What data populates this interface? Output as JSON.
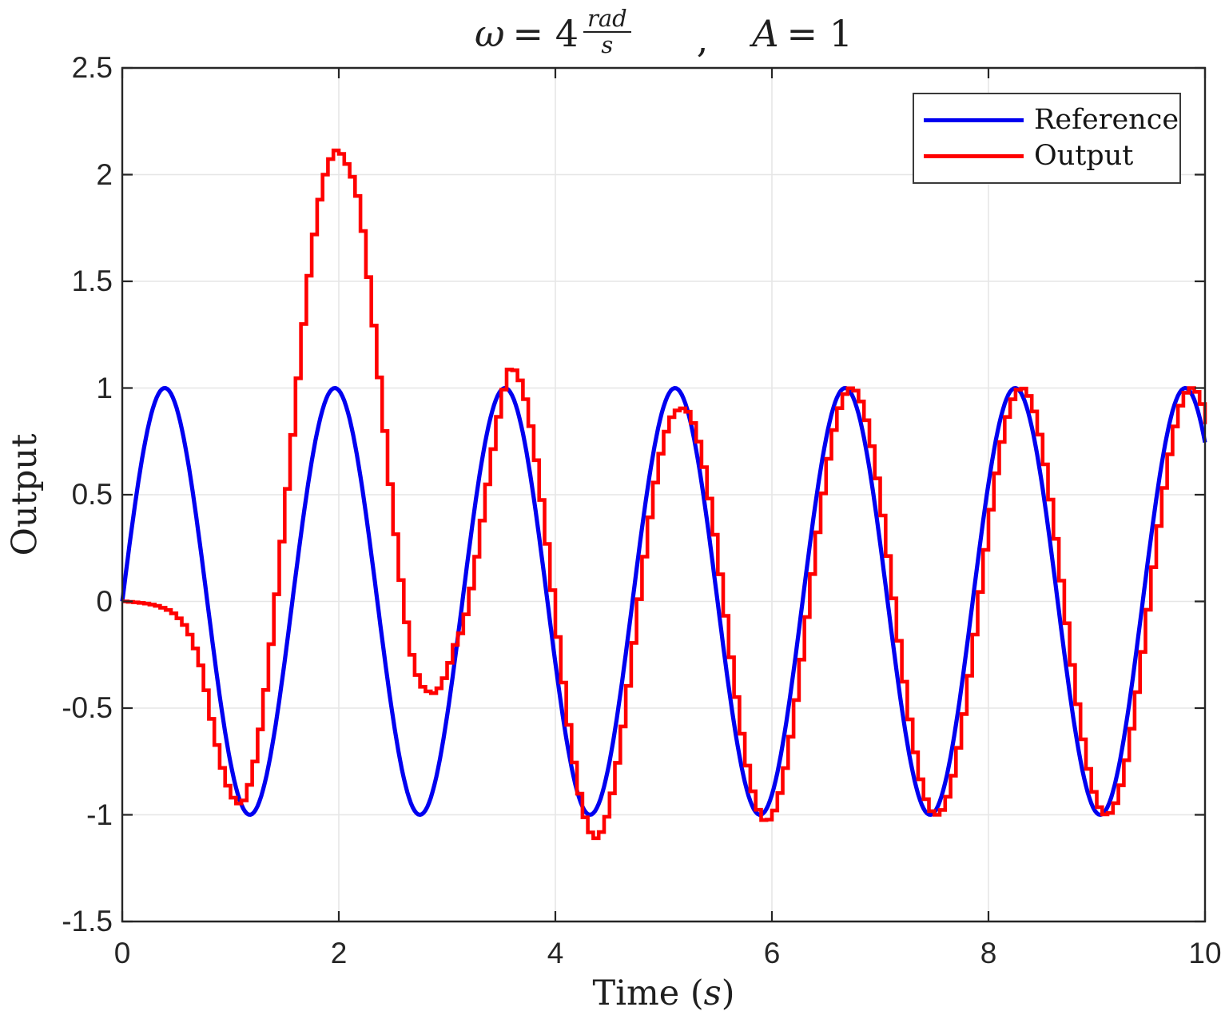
{
  "title": {
    "var1": "ω",
    "eq1": "= 4",
    "frac_num": "rad",
    "frac_den": "s",
    "separator": ",",
    "var2": "A",
    "eq2": "= 1"
  },
  "axes": {
    "ylabel": "Output",
    "xlabel_prefix": "Time (",
    "xlabel_var": "s",
    "xlabel_suffix": ")",
    "xlim": [
      0,
      10
    ],
    "ylim": [
      -1.5,
      2.5
    ],
    "x_ticks": [
      {
        "value": 0,
        "label": "0"
      },
      {
        "value": 2,
        "label": "2"
      },
      {
        "value": 4,
        "label": "4"
      },
      {
        "value": 6,
        "label": "6"
      },
      {
        "value": 8,
        "label": "8"
      },
      {
        "value": 10,
        "label": "10"
      }
    ],
    "y_ticks": [
      {
        "value": -1.5,
        "label": "-1.5"
      },
      {
        "value": -1,
        "label": "-1"
      },
      {
        "value": -0.5,
        "label": "-0.5"
      },
      {
        "value": 0,
        "label": "0"
      },
      {
        "value": 0.5,
        "label": "0.5"
      },
      {
        "value": 1,
        "label": "1"
      },
      {
        "value": 1.5,
        "label": "1.5"
      },
      {
        "value": 2,
        "label": "2"
      },
      {
        "value": 2.5,
        "label": "2.5"
      }
    ]
  },
  "legend": {
    "items": [
      {
        "label": "Reference",
        "color": "#0000f0"
      },
      {
        "label": "Output",
        "color": "#ff0000"
      }
    ]
  },
  "colors": {
    "axis": "#262626",
    "grid": "#e6e6e6",
    "background": "#ffffff",
    "text": "#1f1f1f"
  },
  "chart_data": {
    "type": "line",
    "title": "omega = 4 rad/s , A = 1",
    "xlabel": "Time (s)",
    "ylabel": "Output",
    "xlim": [
      0,
      10
    ],
    "ylim": [
      -1.5,
      2.5
    ],
    "grid": true,
    "legend_position": "top-right",
    "series": [
      {
        "name": "Reference",
        "color": "#0000f0",
        "style": "smooth-sine",
        "model": "A*sin(omega*t)",
        "amplitude": 1,
        "omega": 4
      },
      {
        "name": "Output",
        "color": "#ff0000",
        "style": "zoh-staircase",
        "sample_time": 0.05,
        "omega": 4,
        "transient_anchors": [
          [
            0,
            0
          ],
          [
            0.2,
            -0.01
          ],
          [
            0.4,
            -0.04
          ],
          [
            0.55,
            -0.11
          ],
          [
            0.7,
            -0.3
          ],
          [
            0.8,
            -0.55
          ],
          [
            0.9,
            -0.78
          ],
          [
            1,
            -0.92
          ],
          [
            1.07,
            -0.95
          ],
          [
            1.15,
            -0.86
          ],
          [
            1.25,
            -0.6
          ],
          [
            1.35,
            -0.2
          ],
          [
            1.45,
            0.28
          ],
          [
            1.55,
            0.78
          ],
          [
            1.65,
            1.3
          ],
          [
            1.75,
            1.72
          ],
          [
            1.85,
            2.0
          ],
          [
            1.96,
            2.115
          ],
          [
            2.05,
            2.05
          ],
          [
            2.15,
            1.9
          ],
          [
            2.25,
            1.52
          ],
          [
            2.35,
            1.05
          ],
          [
            2.45,
            0.55
          ],
          [
            2.55,
            0.1
          ],
          [
            2.65,
            -0.25
          ],
          [
            2.75,
            -0.4
          ],
          [
            2.85,
            -0.43
          ],
          [
            2.95,
            -0.36
          ],
          [
            3.05,
            -0.2
          ]
        ],
        "transition_time": 3.05,
        "steady_state_delay": 0.035,
        "envelope_anchors": [
          [
            3.05,
            0.42
          ],
          [
            3.3,
            0.8
          ],
          [
            3.55,
            1.09
          ],
          [
            3.95,
            1.1
          ],
          [
            4.35,
            1.11
          ],
          [
            4.75,
            1.02
          ],
          [
            5.12,
            0.9
          ],
          [
            5.5,
            0.97
          ],
          [
            5.9,
            1.03
          ],
          [
            6.3,
            1.01
          ],
          [
            6.7,
            1.0
          ],
          [
            10,
            1.0
          ]
        ],
        "key_extrema": [
          [
            1.05,
            -0.95
          ],
          [
            1.96,
            2.11
          ],
          [
            2.85,
            -0.43
          ],
          [
            3.55,
            1.09
          ],
          [
            4.35,
            -1.11
          ],
          [
            5.12,
            0.9
          ],
          [
            5.9,
            -1.03
          ],
          [
            6.68,
            1.0
          ],
          [
            7.46,
            -1.0
          ],
          [
            8.25,
            1.0
          ],
          [
            9.03,
            -1.0
          ],
          [
            9.82,
            1.0
          ]
        ]
      }
    ]
  }
}
